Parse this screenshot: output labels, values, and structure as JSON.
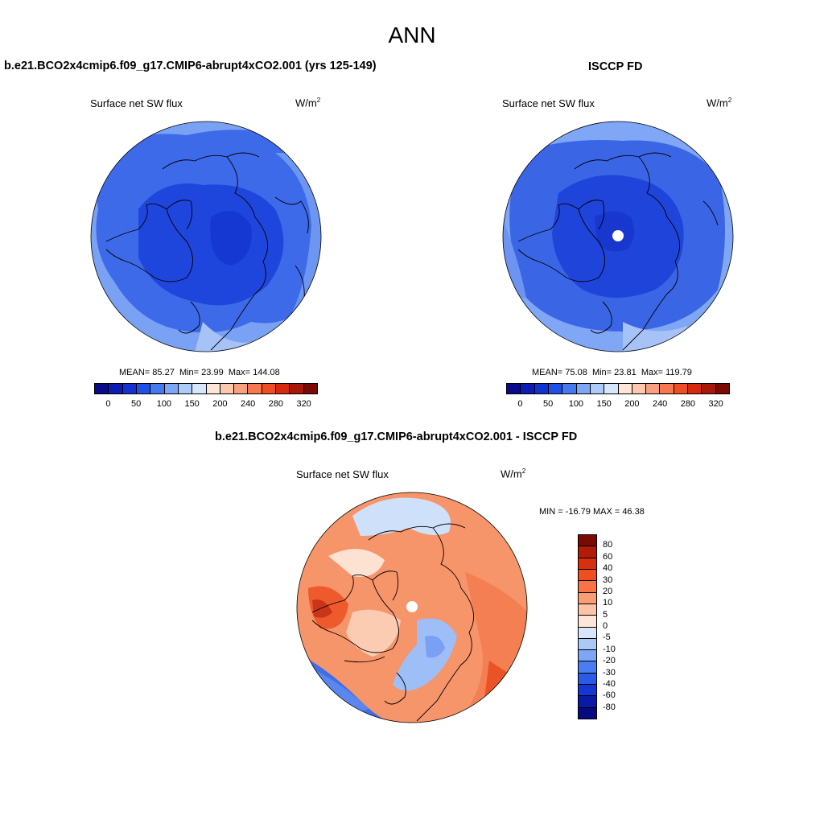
{
  "figure": {
    "title": "ANN"
  },
  "panels": {
    "model": {
      "title": "b.e21.BCO2x4cmip6.f09_g17.CMIP6-abrupt4xCO2.001 (yrs 125-149)",
      "subtitle": "Surface net SW flux",
      "units_base": "W/m",
      "units_exp": "2",
      "stats": {
        "mean_label": "MEAN=",
        "mean": "85.27",
        "min_label": "Min=",
        "min": "23.99",
        "max_label": "Max=",
        "max": "144.08"
      }
    },
    "obs": {
      "title": "ISCCP FD",
      "subtitle": "Surface net SW flux",
      "units_base": "W/m",
      "units_exp": "2",
      "stats": {
        "mean_label": "MEAN=",
        "mean": "75.08",
        "min_label": "Min=",
        "min": "23.81",
        "max_label": "Max=",
        "max": "119.79"
      }
    },
    "diff": {
      "title": "b.e21.BCO2x4cmip6.f09_g17.CMIP6-abrupt4xCO2.001 - ISCCP FD",
      "subtitle": "Surface net SW flux",
      "units_base": "W/m",
      "units_exp": "2",
      "minmax": "MIN = -16.79 MAX =  46.38"
    }
  },
  "colorbars": {
    "abs": {
      "colors": [
        "#0a0a8c",
        "#0f1cb4",
        "#1432d2",
        "#2050e6",
        "#4678f0",
        "#7ea6f6",
        "#aecaf9",
        "#d8e6fb",
        "#fde6d8",
        "#fcc9ae",
        "#f9a07e",
        "#f7784e",
        "#ef4e23",
        "#d52a10",
        "#a51a0a",
        "#7a0a04"
      ],
      "ticks": [
        "0",
        "50",
        "100",
        "150",
        "200",
        "240",
        "280",
        "320"
      ]
    },
    "diff": {
      "colors": [
        "#7a0a04",
        "#b01c08",
        "#d8300e",
        "#f04e1e",
        "#f87446",
        "#fa9c74",
        "#fcc4a6",
        "#fde6d8",
        "#d8e6fb",
        "#aac8f8",
        "#7ea6f6",
        "#4a7cf2",
        "#2a5ae8",
        "#1436d6",
        "#0a1aa8",
        "#060a7e"
      ],
      "ticks": [
        "80",
        "60",
        "40",
        "30",
        "20",
        "10",
        "5",
        "0",
        "-5",
        "-10",
        "-20",
        "-30",
        "-40",
        "-60",
        "-80"
      ]
    }
  },
  "maps": {
    "model": {
      "base": "#3d6ae8",
      "ring": "#7aa2f4",
      "center": "#1f46dc",
      "gap": false
    },
    "obs": {
      "base": "#3a66e6",
      "ring": "#80a6f6",
      "center": "#1f44da",
      "gap": true
    },
    "diff": {
      "base": "#f6946a",
      "ring": "#f7a683",
      "center": "#f7b08e",
      "gap": true
    }
  }
}
